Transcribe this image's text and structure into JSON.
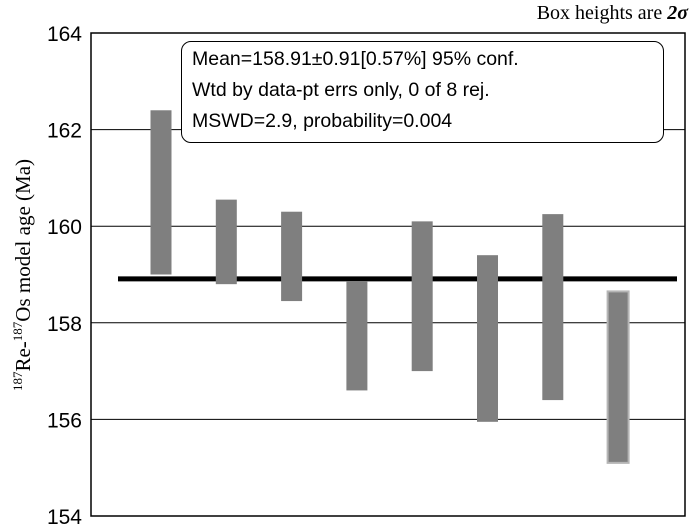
{
  "chart_data": {
    "type": "bar",
    "subtype": "weighted-mean error boxes",
    "ylabel_parts": {
      "sup1": "187",
      "re": "Re-",
      "sup2": "187",
      "rest": "Os model age (Ma)"
    },
    "ylim": [
      154,
      164
    ],
    "yticks": [
      154,
      156,
      158,
      160,
      162,
      164
    ],
    "grid": true,
    "boxes": [
      {
        "low": 159.0,
        "high": 162.4
      },
      {
        "low": 158.8,
        "high": 160.55
      },
      {
        "low": 158.45,
        "high": 160.3
      },
      {
        "low": 156.6,
        "high": 158.85
      },
      {
        "low": 157.0,
        "high": 160.1
      },
      {
        "low": 155.95,
        "high": 159.4
      },
      {
        "low": 156.4,
        "high": 160.25
      },
      {
        "low": 155.1,
        "high": 158.65
      }
    ],
    "mean": 158.91,
    "note": {
      "prefix": "Box heights are ",
      "value": "2σ"
    },
    "stats_lines": [
      "Mean=158.91±0.91[0.57%] 95% conf.",
      "Wtd by data-pt errs only, 0 of 8 rej.",
      "MSWD=2.9, probability=0.004"
    ]
  },
  "colors": {
    "box_fill": "#7f7f7f",
    "last_box_stroke": "#b5b5b5",
    "mean_line": "#000000",
    "grid": "#000000"
  }
}
